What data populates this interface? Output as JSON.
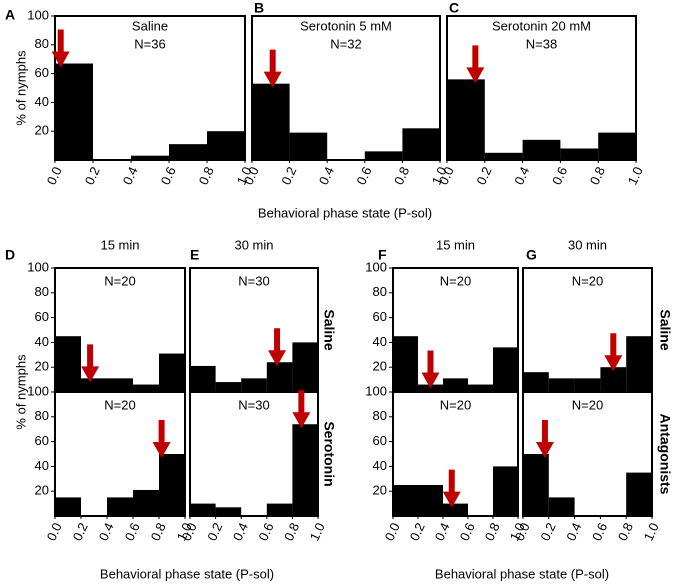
{
  "chart_data": [
    {
      "type": "histogram",
      "letter": "A",
      "title": "Saline",
      "n_label": "N=36",
      "ylabel": "% of nymphs",
      "bins": [
        0,
        0.2,
        0.4,
        0.6,
        0.8,
        1
      ],
      "values": [
        67,
        0,
        3,
        11,
        20
      ],
      "color": "#000000",
      "arrow": 0.03,
      "arrow_color": "#c00000",
      "xlim": [
        0,
        1
      ],
      "ylim": [
        0,
        100
      ],
      "yticks": [
        20,
        40,
        60,
        80,
        100
      ],
      "xticks": [
        {
          "value": 0,
          "label": "0.0"
        },
        0.2,
        0.4,
        0.6,
        0.8,
        {
          "value": 1,
          "label": "1.0"
        }
      ]
    },
    {
      "type": "histogram",
      "letter": "B",
      "title": "Serotonin 5 mM",
      "n_label": "N=32",
      "xlabel": "Behavioral phase state (P-sol)",
      "bins": [
        0,
        0.2,
        0.4,
        0.6,
        0.8,
        1
      ],
      "values": [
        53,
        19,
        0,
        6,
        22
      ],
      "color": "#000000",
      "arrow": 0.11,
      "arrow_color": "#c00000",
      "xlim": [
        0,
        1
      ],
      "ylim": [
        0,
        100
      ],
      "xticks": [
        {
          "value": 0,
          "label": "0.0"
        },
        0.2,
        0.4,
        0.6,
        0.8,
        {
          "value": 1,
          "label": "1.0"
        }
      ]
    },
    {
      "type": "histogram",
      "letter": "C",
      "title": "Serotonin 20 mM",
      "n_label": "N=38",
      "bins": [
        0,
        0.2,
        0.4,
        0.6,
        0.8,
        1
      ],
      "values": [
        56,
        5,
        14,
        8,
        19
      ],
      "color": "#000000",
      "arrow": 0.15,
      "arrow_color": "#c00000",
      "xlim": [
        0,
        1
      ],
      "ylim": [
        0,
        100
      ],
      "xticks": [
        {
          "value": 0,
          "label": "0.0"
        },
        0.2,
        0.4,
        0.6,
        0.8,
        {
          "value": 1,
          "label": "1.0"
        }
      ]
    },
    {
      "type": "histogram",
      "letter": "D",
      "time": "15 min",
      "n_label": "N=20",
      "ylabel": "% of nymphs",
      "bins": [
        0,
        0.2,
        0.4,
        0.6,
        0.8,
        1
      ],
      "values": [
        45,
        11,
        11,
        6,
        31
      ],
      "color": "#000000",
      "arrow": 0.27,
      "arrow_color": "#c00000",
      "xlim": [
        0,
        1
      ],
      "ylim": [
        0,
        100
      ],
      "yticks": [
        20,
        40,
        60,
        80,
        100
      ]
    },
    {
      "type": "histogram",
      "n_label": "N=20",
      "bins": [
        0,
        0.2,
        0.4,
        0.6,
        0.8,
        1
      ],
      "values": [
        15,
        0,
        15,
        21,
        50
      ],
      "color": "#000000",
      "arrow": 0.82,
      "arrow_color": "#c00000",
      "xlim": [
        0,
        1
      ],
      "ylim": [
        0,
        100
      ],
      "yticks": [
        20,
        40,
        60,
        80,
        100
      ],
      "xticks": [
        {
          "value": 0,
          "label": "0.0"
        },
        0.2,
        0.4,
        0.6,
        0.8,
        {
          "value": 1,
          "label": "1.0"
        }
      ]
    },
    {
      "type": "histogram",
      "letter": "E",
      "time": "30 min",
      "n_label": "N=30",
      "group": "Saline",
      "bins": [
        0,
        0.2,
        0.4,
        0.6,
        0.8,
        1
      ],
      "values": [
        21,
        8,
        11,
        24,
        40
      ],
      "color": "#000000",
      "arrow": 0.68,
      "arrow_color": "#c00000",
      "xlim": [
        0,
        1
      ],
      "ylim": [
        0,
        100
      ]
    },
    {
      "type": "histogram",
      "n_label": "N=30",
      "group": "Serotonin",
      "xlabel": "Behavioral phase state (P-sol)",
      "bins": [
        0,
        0.2,
        0.4,
        0.6,
        0.8,
        1
      ],
      "values": [
        10,
        7,
        0,
        10,
        74
      ],
      "color": "#000000",
      "arrow": 0.87,
      "arrow_color": "#c00000",
      "xlim": [
        0,
        1
      ],
      "ylim": [
        0,
        100
      ],
      "xticks": [
        {
          "value": 0,
          "label": "0.0"
        },
        0.2,
        0.4,
        0.6,
        0.8,
        {
          "value": 1,
          "label": "1.0"
        }
      ]
    },
    {
      "type": "histogram",
      "letter": "F",
      "time": "15 min",
      "n_label": "N=20",
      "bins": [
        0,
        0.2,
        0.4,
        0.6,
        0.8,
        1
      ],
      "values": [
        45,
        6,
        11,
        6,
        36
      ],
      "color": "#000000",
      "arrow": 0.3,
      "arrow_color": "#c00000",
      "xlim": [
        0,
        1
      ],
      "ylim": [
        0,
        100
      ],
      "yticks": [
        20,
        40,
        60,
        80,
        100
      ]
    },
    {
      "type": "histogram",
      "n_label": "N=20",
      "bins": [
        0,
        0.2,
        0.4,
        0.6,
        0.8,
        1
      ],
      "values": [
        25,
        25,
        10,
        0,
        40
      ],
      "color": "#000000",
      "arrow": 0.47,
      "arrow_color": "#c00000",
      "xlim": [
        0,
        1
      ],
      "ylim": [
        0,
        100
      ],
      "yticks": [
        20,
        40,
        60,
        80,
        100
      ],
      "xticks": [
        {
          "value": 0,
          "label": "0.0"
        },
        0.2,
        0.4,
        0.6,
        0.8,
        {
          "value": 1,
          "label": "1.0"
        }
      ]
    },
    {
      "type": "histogram",
      "letter": "G",
      "time": "30 min",
      "n_label": "N=20",
      "group": "Saline",
      "bins": [
        0,
        0.2,
        0.4,
        0.6,
        0.8,
        1
      ],
      "values": [
        16,
        11,
        11,
        20,
        45
      ],
      "color": "#000000",
      "arrow": 0.7,
      "arrow_color": "#c00000",
      "xlim": [
        0,
        1
      ],
      "ylim": [
        0,
        100
      ]
    },
    {
      "type": "histogram",
      "n_label": "N=20",
      "group": "Antagonists",
      "xlabel": "Behavioral phase state (P-sol)",
      "bins": [
        0,
        0.2,
        0.4,
        0.6,
        0.8,
        1
      ],
      "values": [
        50,
        15,
        0,
        0,
        35
      ],
      "color": "#000000",
      "arrow": 0.17,
      "arrow_color": "#c00000",
      "xlim": [
        0,
        1
      ],
      "ylim": [
        0,
        100
      ],
      "xticks": [
        {
          "value": 0,
          "label": "0.0"
        },
        0.2,
        0.4,
        0.6,
        0.8,
        {
          "value": 1,
          "label": "1.0"
        }
      ]
    }
  ]
}
